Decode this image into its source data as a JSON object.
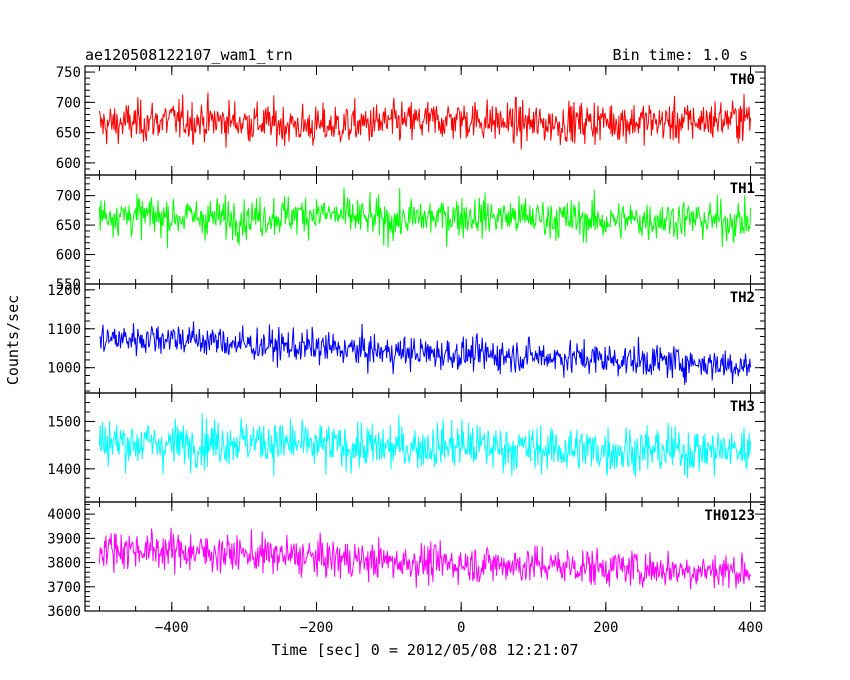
{
  "header": {
    "title": "ae120508122107_wam1_trn",
    "bin_time": "Bin time: 1.0 s"
  },
  "chart_data": {
    "type": "line",
    "title": "ae120508122107_wam1_trn",
    "subtitle": "Bin time: 1.0 s",
    "xlabel": "Time [sec] 0 = 2012/05/08 12:21:07",
    "ylabel": "Counts/sec",
    "xlim": [
      -520,
      420
    ],
    "x_ticks": [
      -400,
      -200,
      0,
      200,
      400
    ],
    "x_tick_labels": [
      "−400",
      "−200",
      "0",
      "200",
      "400"
    ],
    "x_range": [
      -500,
      400
    ],
    "bin_time_s": 1.0,
    "grid": false,
    "panels": [
      {
        "name": "TH0",
        "color": "#ff0000",
        "ylim": [
          580,
          760
        ],
        "y_ticks": [
          600,
          650,
          700,
          750
        ],
        "start_mean": 665,
        "end_mean": 670,
        "noise_sd": 24,
        "y_samples": [
          663,
          671,
          668,
          660,
          666,
          672,
          664,
          669,
          667,
          675
        ]
      },
      {
        "name": "TH1",
        "color": "#00ff00",
        "ylim": [
          550,
          735
        ],
        "y_ticks": [
          550,
          600,
          650,
          700
        ],
        "start_mean": 665,
        "end_mean": 658,
        "noise_sd": 24,
        "y_samples": [
          668,
          664,
          662,
          670,
          658,
          666,
          663,
          657,
          661,
          655
        ]
      },
      {
        "name": "TH2",
        "color": "#0000ff",
        "ylim": [
          935,
          1215
        ],
        "y_ticks": [
          1000,
          1100,
          1200
        ],
        "start_mean": 1070,
        "end_mean": 1005,
        "noise_sd": 30,
        "y_samples": [
          1072,
          1078,
          1060,
          1052,
          1040,
          1035,
          1030,
          1022,
          1015,
          1005
        ]
      },
      {
        "name": "TH3",
        "color": "#00ffff",
        "ylim": [
          1330,
          1560
        ],
        "y_ticks": [
          1400,
          1500
        ],
        "start_mean": 1455,
        "end_mean": 1440,
        "noise_sd": 35,
        "y_samples": [
          1458,
          1452,
          1460,
          1448,
          1445,
          1450,
          1442,
          1440,
          1438,
          1440
        ]
      },
      {
        "name": "TH0123",
        "color": "#ff00ff",
        "ylim": [
          3600,
          4050
        ],
        "y_ticks": [
          3600,
          3700,
          3800,
          3900,
          4000
        ],
        "start_mean": 3850,
        "end_mean": 3765,
        "noise_sd": 55,
        "y_samples": [
          3860,
          3850,
          3835,
          3820,
          3805,
          3795,
          3790,
          3780,
          3770,
          3765
        ]
      }
    ]
  }
}
